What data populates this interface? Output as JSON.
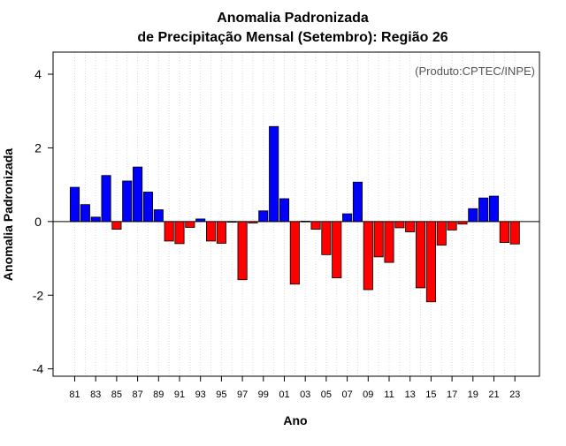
{
  "chart_data": {
    "type": "bar",
    "title_line1": "Anomalia Padronizada",
    "title_line2": "de Precipitação Mensal (Setembro): Região 26",
    "xlabel": "Ano",
    "ylabel": "Anomalia Padronizada",
    "source_note": "(Produto:CPTEC/INPE)",
    "ylim": [
      -4.2,
      4.6
    ],
    "yticks": [
      -4,
      -2,
      0,
      2,
      4
    ],
    "ytick_labels": [
      "-4",
      "-2",
      "0",
      "2",
      "4"
    ],
    "grid": "vertical dotted",
    "positive_color": "#0000ff",
    "negative_color": "#ff0000",
    "categories": [
      "1981",
      "1982",
      "1983",
      "1984",
      "1985",
      "1986",
      "1987",
      "1988",
      "1989",
      "1990",
      "1991",
      "1992",
      "1993",
      "1994",
      "1995",
      "1996",
      "1997",
      "1998",
      "1999",
      "2000",
      "2001",
      "2002",
      "2003",
      "2004",
      "2005",
      "2006",
      "2007",
      "2008",
      "2009",
      "2010",
      "2011",
      "2012",
      "2013",
      "2014",
      "2015",
      "2016",
      "2017",
      "2018",
      "2019",
      "2020",
      "2021",
      "2022",
      "2023"
    ],
    "x_tick_labels": [
      "81",
      "83",
      "85",
      "87",
      "89",
      "91",
      "93",
      "95",
      "97",
      "99",
      "01",
      "03",
      "05",
      "07",
      "09",
      "11",
      "13",
      "15",
      "17",
      "19",
      "21",
      "23"
    ],
    "values": [
      0.93,
      0.46,
      0.12,
      1.25,
      -0.21,
      1.1,
      1.48,
      0.8,
      0.32,
      -0.53,
      -0.6,
      -0.16,
      0.07,
      -0.53,
      -0.59,
      0.0,
      -1.58,
      -0.04,
      0.29,
      2.58,
      0.62,
      -1.7,
      0.01,
      -0.21,
      -0.9,
      -1.53,
      0.21,
      1.07,
      -1.85,
      -0.96,
      -1.11,
      -0.17,
      -0.28,
      -1.8,
      -2.18,
      -0.64,
      -0.23,
      -0.07,
      0.35,
      0.64,
      0.69,
      -0.57,
      -0.61
    ]
  }
}
